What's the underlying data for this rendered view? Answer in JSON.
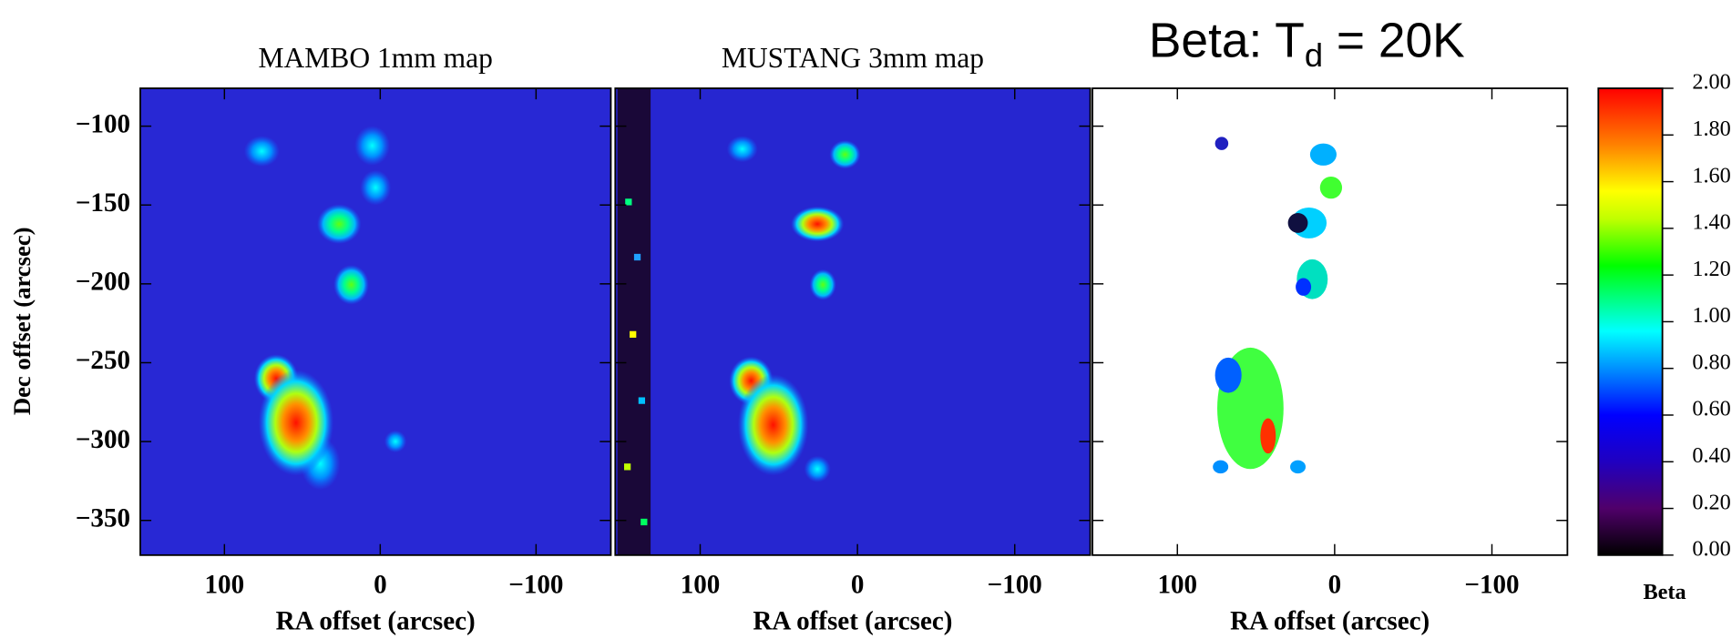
{
  "chart_data": [
    {
      "type": "heatmap",
      "title": "MAMBO 1mm map",
      "xlabel": "RA offset (arcsec)",
      "ylabel": "Dec offset (arcsec)",
      "xlim": [
        154,
        -148
      ],
      "xticks": [
        100,
        0,
        {
          "value": -100,
          "label": "−100"
        }
      ],
      "ylim": [
        -372,
        -76
      ],
      "yticks": [
        {
          "value": -100,
          "label": "−100"
        },
        {
          "value": -150,
          "label": "−150"
        },
        {
          "value": -200,
          "label": "−200"
        },
        {
          "value": -250,
          "label": "−250"
        },
        {
          "value": -300,
          "label": "−300"
        },
        {
          "value": -350,
          "label": "−350"
        }
      ]
    },
    {
      "type": "heatmap",
      "title": "MUSTANG 3mm map",
      "xlabel": "RA offset (arcsec)",
      "xlim": [
        154,
        -148
      ],
      "xticks": [
        100,
        0,
        {
          "value": -100,
          "label": "−100"
        }
      ],
      "ylim": [
        -372,
        -76
      ]
    },
    {
      "type": "heatmap",
      "title": [
        "Beta: T",
        "d",
        " = 20K"
      ],
      "xlabel": "RA offset (arcsec)",
      "xlim": [
        154,
        -148
      ],
      "xticks": [
        100,
        0,
        {
          "value": -100,
          "label": "−100"
        }
      ],
      "ylim": [
        -372,
        -76
      ],
      "colorbar": {
        "label": "Beta",
        "lim": [
          0,
          2
        ],
        "ticks": [
          {
            "value": 0,
            "label": "0.00"
          },
          {
            "value": 0.2,
            "label": "0.20"
          },
          {
            "value": 0.4,
            "label": "0.40"
          },
          {
            "value": 0.6,
            "label": "0.60"
          },
          {
            "value": 0.8,
            "label": "0.80"
          },
          {
            "value": 1,
            "label": "1.00"
          },
          {
            "value": 1.2,
            "label": "1.20"
          },
          {
            "value": 1.4,
            "label": "1.40"
          },
          {
            "value": 1.6,
            "label": "1.60"
          },
          {
            "value": 1.8,
            "label": "1.80"
          },
          {
            "value": 2,
            "label": "2.00"
          }
        ]
      }
    }
  ]
}
